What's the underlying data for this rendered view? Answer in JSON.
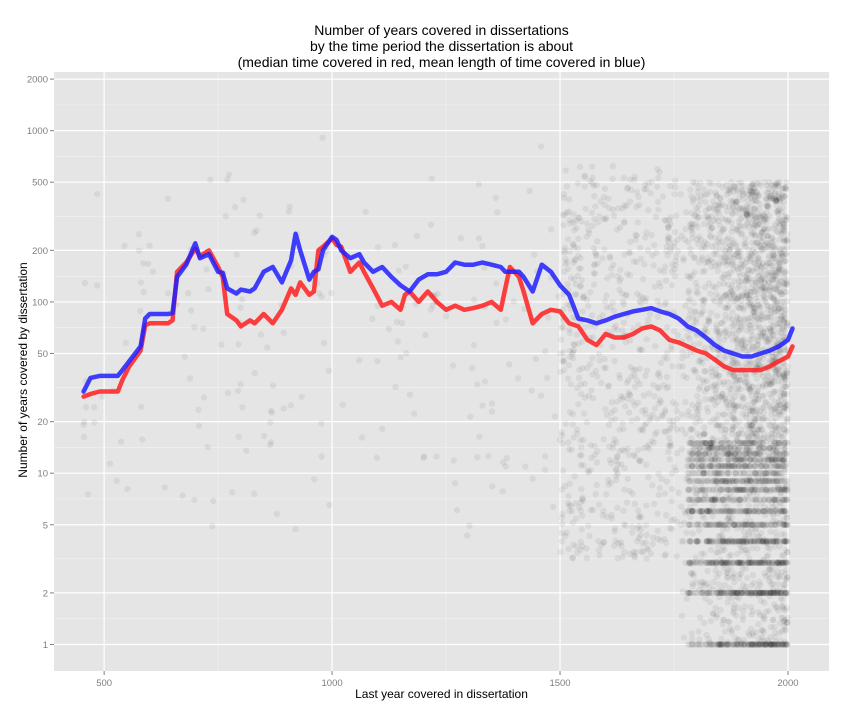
{
  "chart_data": {
    "type": "line",
    "title_lines": [
      "Number of years covered in dissertations",
      "by the time period the dissertation is about",
      "(median time covered in red, mean length of time covered in blue)"
    ],
    "xlabel": "Last year covered in dissertation",
    "ylabel": "Number of years covered by dissertation",
    "x_scale": "linear",
    "y_scale": "log10",
    "xlim": [
      390,
      2090
    ],
    "ylim": [
      0.7,
      2200
    ],
    "x_ticks": [
      500,
      1000,
      1500,
      2000
    ],
    "x_tick_labels": [
      "500",
      "1000",
      "1500",
      "2000"
    ],
    "y_ticks": [
      1,
      2,
      5,
      10,
      20,
      50,
      100,
      200,
      500,
      1000,
      2000
    ],
    "y_tick_labels": [
      "1",
      "2",
      "5",
      "10",
      "20",
      "50",
      "100",
      "200",
      "500",
      "1000",
      "2000"
    ],
    "grid": true,
    "background": "#e5e5e5",
    "grid_major_color": "#ffffff",
    "grid_minor_color": "#f2f2f2",
    "series": [
      {
        "name": "median",
        "color": "#ff2020",
        "x": [
          455,
          470,
          490,
          530,
          540,
          555,
          580,
          590,
          600,
          640,
          650,
          660,
          680,
          700,
          710,
          730,
          750,
          760,
          770,
          790,
          800,
          820,
          830,
          850,
          870,
          890,
          910,
          920,
          930,
          950,
          960,
          970,
          980,
          1000,
          1010,
          1020,
          1040,
          1060,
          1070,
          1090,
          1110,
          1130,
          1150,
          1160,
          1170,
          1190,
          1210,
          1230,
          1250,
          1270,
          1290,
          1310,
          1330,
          1350,
          1370,
          1380,
          1390,
          1410,
          1420,
          1440,
          1460,
          1480,
          1500,
          1520,
          1540,
          1560,
          1580,
          1600,
          1620,
          1640,
          1660,
          1680,
          1700,
          1720,
          1740,
          1760,
          1780,
          1800,
          1820,
          1840,
          1860,
          1880,
          1900,
          1920,
          1940,
          1960,
          1980,
          2000,
          2010
        ],
        "values": [
          28,
          29,
          30,
          30,
          35,
          42,
          52,
          73,
          75,
          75,
          78,
          150,
          170,
          205,
          185,
          200,
          160,
          140,
          85,
          78,
          72,
          78,
          75,
          85,
          75,
          90,
          120,
          110,
          130,
          110,
          115,
          200,
          210,
          235,
          215,
          210,
          150,
          170,
          150,
          120,
          95,
          100,
          90,
          110,
          115,
          100,
          115,
          100,
          90,
          95,
          90,
          92,
          95,
          100,
          90,
          120,
          160,
          140,
          115,
          75,
          85,
          90,
          88,
          75,
          72,
          60,
          56,
          65,
          62,
          62,
          65,
          70,
          72,
          68,
          60,
          58,
          55,
          52,
          50,
          46,
          42,
          40,
          40,
          40,
          40,
          42,
          45,
          48,
          55
        ]
      },
      {
        "name": "mean",
        "color": "#2020ff",
        "x": [
          455,
          470,
          490,
          530,
          540,
          555,
          580,
          590,
          600,
          640,
          650,
          660,
          680,
          700,
          710,
          730,
          750,
          760,
          770,
          790,
          800,
          820,
          830,
          850,
          870,
          890,
          910,
          920,
          930,
          950,
          960,
          970,
          980,
          1000,
          1010,
          1020,
          1040,
          1060,
          1070,
          1090,
          1110,
          1130,
          1150,
          1160,
          1170,
          1190,
          1210,
          1230,
          1250,
          1270,
          1290,
          1310,
          1330,
          1350,
          1370,
          1380,
          1390,
          1410,
          1420,
          1440,
          1460,
          1480,
          1500,
          1520,
          1540,
          1560,
          1580,
          1600,
          1620,
          1640,
          1660,
          1680,
          1700,
          1720,
          1740,
          1760,
          1780,
          1800,
          1820,
          1840,
          1860,
          1880,
          1900,
          1920,
          1940,
          1960,
          1980,
          2000,
          2010
        ],
        "values": [
          30,
          36,
          37,
          37,
          40,
          45,
          55,
          80,
          85,
          85,
          86,
          140,
          165,
          220,
          180,
          190,
          150,
          148,
          120,
          112,
          118,
          115,
          120,
          150,
          160,
          130,
          175,
          250,
          200,
          135,
          150,
          155,
          200,
          240,
          230,
          200,
          180,
          190,
          170,
          150,
          160,
          140,
          125,
          120,
          115,
          135,
          145,
          145,
          150,
          170,
          165,
          165,
          170,
          165,
          160,
          150,
          150,
          150,
          140,
          115,
          165,
          150,
          125,
          110,
          80,
          78,
          75,
          78,
          82,
          85,
          88,
          90,
          92,
          88,
          85,
          80,
          72,
          68,
          62,
          56,
          52,
          50,
          48,
          48,
          50,
          52,
          55,
          60,
          70
        ]
      }
    ],
    "scatter_background": {
      "description_only": false,
      "color": "#000000",
      "opacity": 0.06
    }
  }
}
